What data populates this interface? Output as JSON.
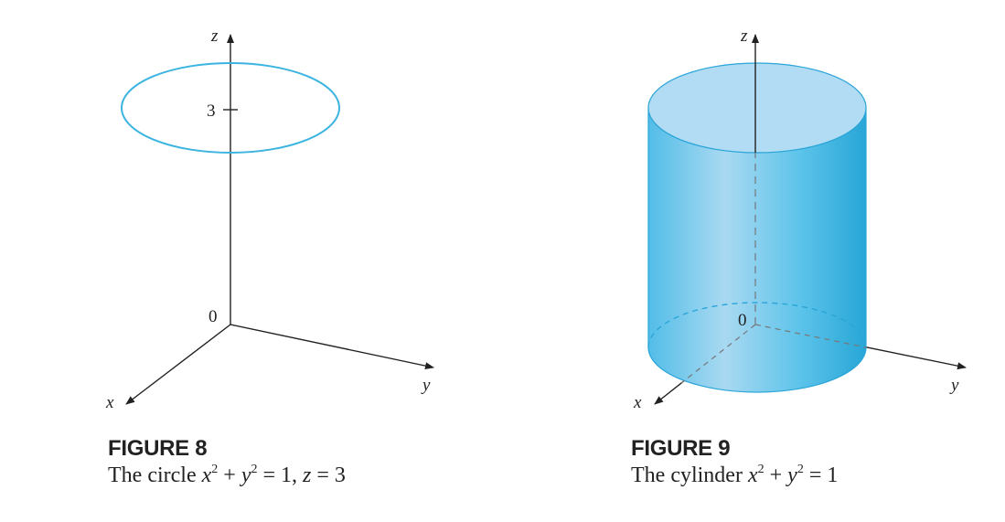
{
  "figure8": {
    "labels": {
      "z": "z",
      "y": "y",
      "x": "x",
      "origin": "0",
      "tick": "3"
    },
    "caption_title": "FIGURE 8",
    "caption_prefix": "The circle ",
    "eq_x": "x",
    "eq_y": "y",
    "eq_z": "z",
    "exp": "2",
    "eq_plus": " + ",
    "eq_equals_one": " = 1, ",
    "eq_equals_three": " = 3",
    "circle_color": "#3bb4e0"
  },
  "figure9": {
    "labels": {
      "z": "z",
      "y": "y",
      "x": "x",
      "origin": "0"
    },
    "caption_title": "FIGURE 9",
    "caption_prefix": "The cylinder ",
    "eq_x": "x",
    "eq_y": "y",
    "exp": "2",
    "eq_plus": " + ",
    "eq_equals_one": " = 1",
    "fill_color": "#5cc3ea",
    "top_color": "#b2dcf3",
    "edge_color": "#2aa5d8"
  }
}
